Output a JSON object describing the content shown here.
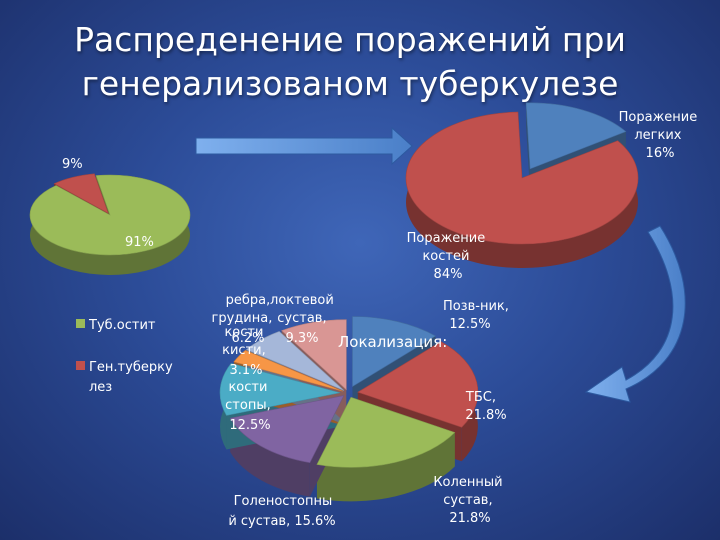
{
  "slide": {
    "title": "Распреденение поражений при генерализованом туберкулезе",
    "annotation": "Локализация:"
  },
  "colors": {
    "green": "#9bbb59",
    "red": "#c0504d",
    "blue": "#4f81bd",
    "purple": "#8064a2",
    "teal": "#4bacc6",
    "orange": "#f79646",
    "lightblue": "#a5b7d9",
    "pink": "#d99694",
    "arrow": "#5a8fd6"
  },
  "chart_data": [
    {
      "type": "pie",
      "title": "",
      "slices": [
        {
          "label": "Туб.остит",
          "value": 91,
          "value_label": "91%",
          "color": "#9bbb59"
        },
        {
          "label": "Ген.туберку лез",
          "value": 9,
          "value_label": "9%",
          "color": "#c0504d"
        }
      ],
      "legend": {
        "placement": "left-bottom",
        "entries": [
          "Туб.остит",
          "Ген.туберку лез"
        ]
      }
    },
    {
      "type": "pie",
      "title": "",
      "slices": [
        {
          "label": "Поражение легких",
          "value": 16,
          "value_label": "16%",
          "color": "#4f81bd"
        },
        {
          "label": "Поражение костей",
          "value": 84,
          "value_label": "84%",
          "color": "#c0504d"
        }
      ]
    },
    {
      "type": "pie",
      "title": "",
      "slices": [
        {
          "label": "Позв-ник",
          "value": 12.5,
          "value_label": "12.5%",
          "color": "#4f81bd"
        },
        {
          "label": "ТБС",
          "value": 21.8,
          "value_label": "21.8%",
          "color": "#c0504d"
        },
        {
          "label": "Коленный сустав",
          "value": 21.8,
          "value_label": "21.8%",
          "color": "#9bbb59"
        },
        {
          "label": "Голеностопный сустав",
          "value": 15.6,
          "value_label": "15.6%",
          "color": "#8064a2"
        },
        {
          "label": "кости стопы",
          "value": 12.5,
          "value_label": "12.5%",
          "color": "#4bacc6"
        },
        {
          "label": "кости кисти",
          "value": 3.1,
          "value_label": "3.1%",
          "color": "#f79646"
        },
        {
          "label": "ребра, грудина",
          "value": 6.2,
          "value_label": "6.2%",
          "color": "#a5b7d9"
        },
        {
          "label": "локтевой сустав",
          "value": 9.3,
          "value_label": "9.3%",
          "color": "#d99694"
        }
      ]
    }
  ],
  "labels": {
    "p1": {
      "pct_red": "9%",
      "pct_green": "91%",
      "legend1": "Туб.остит",
      "legend2a": "Ген.туберку",
      "legend2b": "лез"
    },
    "p2": {
      "blue_a": "Поражение",
      "blue_b": "легких",
      "blue_c": "16%",
      "red_a": "Поражение",
      "red_b": "костей",
      "red_c": "84%"
    },
    "p3": {
      "pozv_a": "Позв-ник,",
      "pozv_b": "12.5%",
      "tbs_a": "ТБС,",
      "tbs_b": "21.8%",
      "kol_a": "Коленный",
      "kol_b": "сустав,",
      "kol_c": "21.8%",
      "gol_a": "Голеностопны",
      "gol_b": "й сустав, 15.6%",
      "stop_a": "кости",
      "stop_b": "стопы,",
      "stop_c": "12.5%",
      "kist_a": "кости",
      "kist_b": "кисти,",
      "kist_c": "3.1%",
      "reb_a": "ребра,",
      "reb_b": "грудина,",
      "reb_c": "6.2%",
      "lok_a": "локтевой",
      "lok_b": "сустав,",
      "lok_c": "9.3%"
    }
  }
}
